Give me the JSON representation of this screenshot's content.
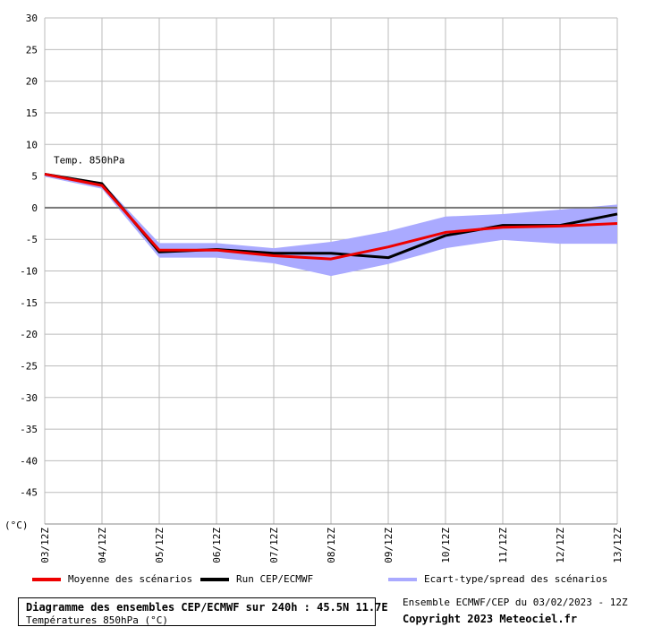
{
  "chart_data": {
    "type": "line",
    "title": "Diagramme des ensembles CEP/ECMWF sur 240h : 45.5N 11.7E",
    "subtitle": "Températures 850hPa (°C)",
    "ylabel": "(°C)",
    "annotation": "Temp. 850hPa",
    "ylim": [
      -50,
      30
    ],
    "yticks": [
      30,
      25,
      20,
      15,
      10,
      5,
      0,
      -5,
      -10,
      -15,
      -20,
      -25,
      -30,
      -35,
      -40,
      -45
    ],
    "grid": true,
    "legend_position": "bottom",
    "categories": [
      "03/12Z",
      "04/12Z",
      "05/12Z",
      "06/12Z",
      "07/12Z",
      "08/12Z",
      "09/12Z",
      "10/12Z",
      "11/12Z",
      "12/12Z",
      "13/12Z"
    ],
    "series": [
      {
        "name": "Moyenne des scénarios",
        "color": "#ee0000",
        "values": [
          5.3,
          3.5,
          -6.7,
          -6.7,
          -7.6,
          -8.1,
          -6.2,
          -3.9,
          -3.1,
          -2.9,
          -2.5
        ]
      },
      {
        "name": "Run CEP/ECMWF",
        "color": "#000000",
        "values": [
          5.3,
          3.8,
          -7.0,
          -6.6,
          -7.2,
          -7.2,
          -7.9,
          -4.4,
          -2.8,
          -2.8,
          -1.0
        ]
      }
    ],
    "spread": {
      "name": "Ecart-type/spread des scénarios",
      "color": "#aaaaff",
      "upper": [
        5.5,
        4.0,
        -5.6,
        -5.6,
        -6.4,
        -5.4,
        -3.7,
        -1.4,
        -1.0,
        -0.3,
        0.5
      ],
      "lower": [
        4.9,
        3.0,
        -7.9,
        -7.9,
        -8.8,
        -10.8,
        -8.9,
        -6.4,
        -5.1,
        -5.7,
        -5.7
      ]
    }
  },
  "footer": {
    "run_info": "Ensemble ECMWF/CEP du 03/02/2023 - 12Z",
    "copyright": "Copyright 2023 Meteociel.fr"
  }
}
